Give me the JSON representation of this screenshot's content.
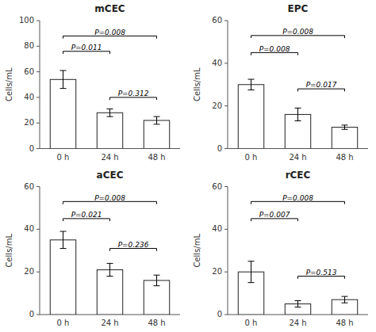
{
  "chart_data": [
    {
      "type": "bar",
      "title": "mCEC",
      "ylabel": "Cells/mL",
      "categories": [
        "0 h",
        "24 h",
        "48 h"
      ],
      "values": [
        54,
        28,
        22
      ],
      "errors": [
        7,
        3,
        3
      ],
      "color": "#ffffff",
      "ylim": [
        0,
        100
      ],
      "yticks": [
        0,
        20,
        40,
        60,
        80,
        100
      ],
      "grid": false,
      "brackets": [
        {
          "from": "0 h",
          "to": "48 h",
          "y": 88,
          "label": "P=0.008"
        },
        {
          "from": "0 h",
          "to": "24 h",
          "y": 76,
          "label": "P=0.011"
        },
        {
          "from": "24 h",
          "to": "48 h",
          "y": 40,
          "label": "P=0.312"
        }
      ]
    },
    {
      "type": "bar",
      "title": "EPC",
      "ylabel": "Cells/mL",
      "categories": [
        "0 h",
        "24 h",
        "48 h"
      ],
      "values": [
        30,
        16,
        10
      ],
      "errors": [
        2.5,
        3,
        1
      ],
      "color": "#ffffff",
      "ylim": [
        0,
        60
      ],
      "yticks": [
        0,
        20,
        40,
        60
      ],
      "grid": false,
      "brackets": [
        {
          "from": "0 h",
          "to": "48 h",
          "y": 53,
          "label": "P=0.008"
        },
        {
          "from": "0 h",
          "to": "24 h",
          "y": 45,
          "label": "P=0.008"
        },
        {
          "from": "24 h",
          "to": "48 h",
          "y": 28,
          "label": "P=0.017"
        }
      ]
    },
    {
      "type": "bar",
      "title": "aCEC",
      "ylabel": "Cells/mL",
      "categories": [
        "0 h",
        "24 h",
        "48 h"
      ],
      "values": [
        35,
        21,
        16
      ],
      "errors": [
        4,
        3,
        2.5
      ],
      "color": "#ffffff",
      "ylim": [
        0,
        60
      ],
      "yticks": [
        0,
        20,
        40,
        60
      ],
      "grid": false,
      "brackets": [
        {
          "from": "0 h",
          "to": "48 h",
          "y": 53,
          "label": "P=0.008"
        },
        {
          "from": "0 h",
          "to": "24 h",
          "y": 45,
          "label": "P=0.021"
        },
        {
          "from": "24 h",
          "to": "48 h",
          "y": 31,
          "label": "P=0.236"
        }
      ]
    },
    {
      "type": "bar",
      "title": "rCEC",
      "ylabel": "Cells/mL",
      "categories": [
        "0 h",
        "24 h",
        "48 h"
      ],
      "values": [
        20,
        5,
        7
      ],
      "errors": [
        5,
        1.5,
        1.5
      ],
      "color": "#ffffff",
      "ylim": [
        0,
        60
      ],
      "yticks": [
        0,
        20,
        40,
        60
      ],
      "grid": false,
      "brackets": [
        {
          "from": "0 h",
          "to": "48 h",
          "y": 53,
          "label": "P=0.008"
        },
        {
          "from": "0 h",
          "to": "24 h",
          "y": 45,
          "label": "P=0.007"
        },
        {
          "from": "24 h",
          "to": "48 h",
          "y": 18,
          "label": "P=0.513"
        }
      ]
    }
  ]
}
